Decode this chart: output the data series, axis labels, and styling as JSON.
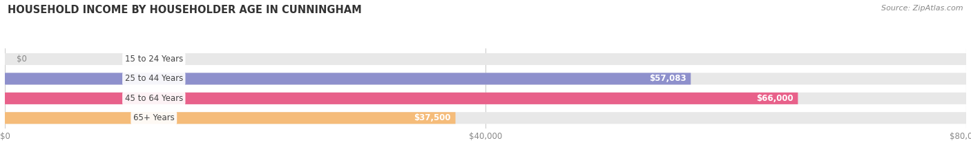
{
  "title": "HOUSEHOLD INCOME BY HOUSEHOLDER AGE IN CUNNINGHAM",
  "source": "Source: ZipAtlas.com",
  "categories": [
    "15 to 24 Years",
    "25 to 44 Years",
    "45 to 64 Years",
    "65+ Years"
  ],
  "values": [
    0,
    57083,
    66000,
    37500
  ],
  "bar_colors": [
    "#6ecece",
    "#8e90cc",
    "#e8618a",
    "#f5bc7a"
  ],
  "xlim": [
    0,
    80000
  ],
  "xticks": [
    0,
    40000,
    80000
  ],
  "xtick_labels": [
    "$0",
    "$40,000",
    "$80,000"
  ],
  "background_color": "#ffffff",
  "bar_bg_color": "#e8e8e8",
  "category_color": "#444444",
  "value_color": "#ffffff",
  "grid_color": "#cccccc",
  "source_color": "#888888",
  "title_color": "#333333"
}
